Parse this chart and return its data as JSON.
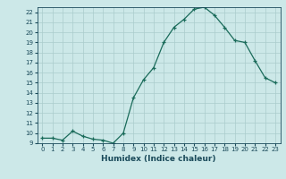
{
  "x": [
    0,
    1,
    2,
    3,
    4,
    5,
    6,
    7,
    8,
    9,
    10,
    11,
    12,
    13,
    14,
    15,
    16,
    17,
    18,
    19,
    20,
    21,
    22,
    23
  ],
  "y": [
    9.5,
    9.5,
    9.3,
    10.2,
    9.7,
    9.4,
    9.3,
    9.0,
    10.0,
    13.5,
    15.3,
    16.5,
    19.0,
    20.5,
    21.3,
    22.3,
    22.5,
    21.7,
    20.5,
    19.2,
    19.0,
    17.2,
    15.5,
    15.0
  ],
  "line_color": "#1a6b5a",
  "bg_color": "#cce8e8",
  "grid_color": "#aacccc",
  "text_color": "#1a4a5a",
  "xlabel": "Humidex (Indice chaleur)",
  "ylim": [
    9,
    22.5
  ],
  "xlim": [
    -0.5,
    23.5
  ],
  "yticks": [
    9,
    10,
    11,
    12,
    13,
    14,
    15,
    16,
    17,
    18,
    19,
    20,
    21,
    22
  ],
  "xticks": [
    0,
    1,
    2,
    3,
    4,
    5,
    6,
    7,
    8,
    9,
    10,
    11,
    12,
    13,
    14,
    15,
    16,
    17,
    18,
    19,
    20,
    21,
    22,
    23
  ],
  "xtick_labels": [
    "0",
    "1",
    "2",
    "3",
    "4",
    "5",
    "6",
    "7",
    "8",
    "9",
    "10",
    "11",
    "12",
    "13",
    "14",
    "15",
    "16",
    "17",
    "18",
    "19",
    "20",
    "21",
    "22",
    "23"
  ],
  "ytick_labels": [
    "9",
    "10",
    "11",
    "12",
    "13",
    "14",
    "15",
    "16",
    "17",
    "18",
    "19",
    "20",
    "21",
    "22"
  ]
}
